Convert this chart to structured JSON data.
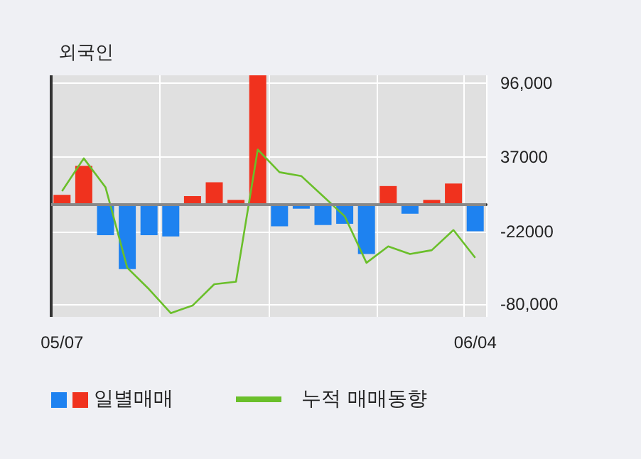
{
  "chart_data": {
    "type": "bar",
    "title": "외국인",
    "categories": [
      "05/07",
      null,
      null,
      null,
      null,
      null,
      null,
      null,
      null,
      null,
      null,
      null,
      null,
      null,
      null,
      null,
      null,
      null,
      null,
      "06/04"
    ],
    "series": [
      {
        "name": "일별매매",
        "colors": [
          "#f0321e",
          "#f0321e",
          "#1e82f0",
          "#1e82f0",
          "#1e82f0",
          "#1e82f0",
          "#f0321e",
          "#f0321e",
          "#f0321e",
          "#f0321e",
          "#1e82f0",
          "#1e82f0",
          "#1e82f0",
          "#1e82f0",
          "#1e82f0",
          "#f0321e",
          "#1e82f0",
          "#f0321e",
          "#f0321e",
          "#1e82f0"
        ],
        "values": [
          7000,
          30000,
          -25000,
          -52000,
          -25000,
          -26000,
          6000,
          17000,
          3000,
          102000,
          -18000,
          -4000,
          -17000,
          -16000,
          -40000,
          14000,
          -8000,
          3000,
          16000,
          -22000
        ]
      },
      {
        "name": "누적 매매동향",
        "type": "line",
        "color": "#6abf2a",
        "values": [
          10000,
          36000,
          13000,
          -51000,
          -68000,
          -87000,
          -81000,
          -64000,
          -62000,
          43000,
          25000,
          22000,
          6000,
          -10000,
          -47000,
          -34000,
          -40000,
          -37000,
          -21000,
          -43000
        ]
      }
    ],
    "ylim": [
      -90000,
      102000
    ],
    "yticks": [
      {
        "value": 96000,
        "label": "96,000"
      },
      {
        "value": 37000,
        "label": "37000"
      },
      {
        "value": -22000,
        "label": "-22000"
      },
      {
        "value": -80000,
        "label": "-80,000"
      }
    ],
    "ref_lines": [
      {
        "axis": "y",
        "value": 0,
        "color": "#888888"
      }
    ],
    "grid": true,
    "legend": "bottom",
    "marker": "none",
    "line_style": "solid"
  }
}
